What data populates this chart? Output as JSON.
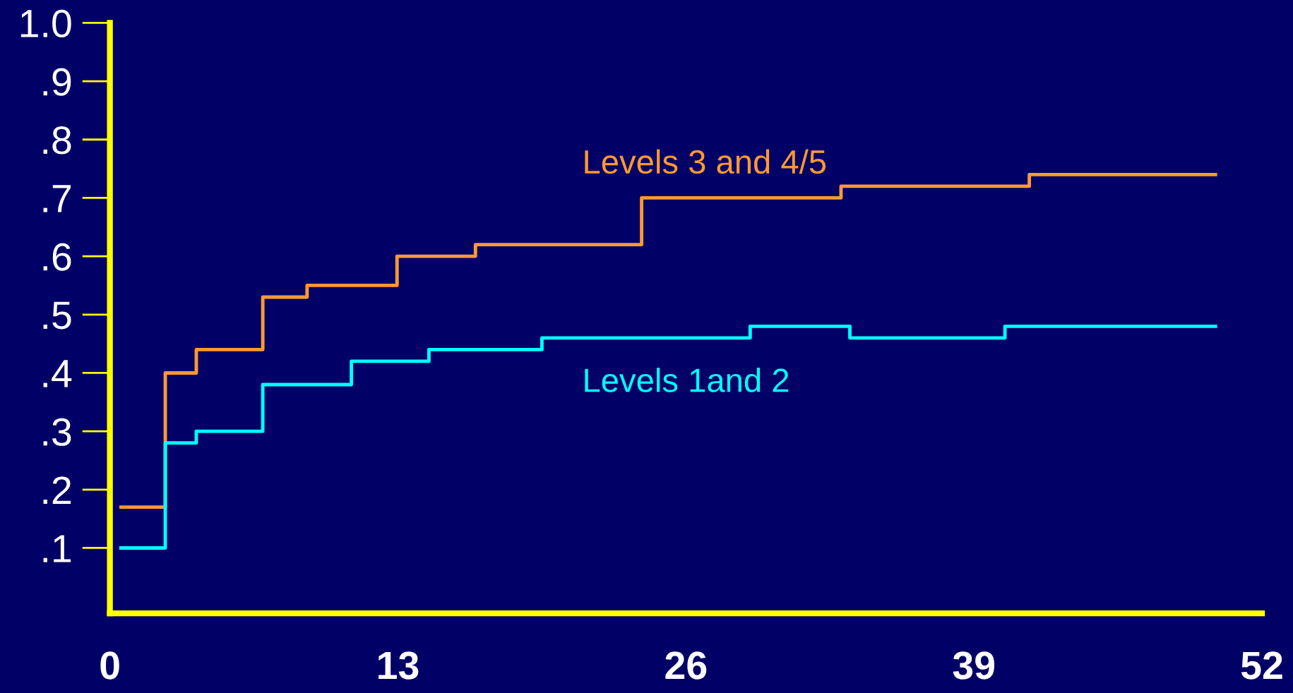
{
  "chart_data": {
    "type": "step",
    "xlim": [
      0,
      52
    ],
    "xticks": [
      0,
      13,
      26,
      39,
      52
    ],
    "ylim": [
      -0.012,
      1.0
    ],
    "yticks": [
      {
        "value": 0.1,
        "label": ".1"
      },
      {
        "value": 0.2,
        "label": ".2"
      },
      {
        "value": 0.3,
        "label": ".3"
      },
      {
        "value": 0.4,
        "label": ".4"
      },
      {
        "value": 0.5,
        "label": ".5"
      },
      {
        "value": 0.6,
        "label": ".6"
      },
      {
        "value": 0.7,
        "label": ".7"
      },
      {
        "value": 0.8,
        "label": ".8"
      },
      {
        "value": 0.9,
        "label": ".9"
      },
      {
        "value": 1.0,
        "label": "1.0"
      }
    ],
    "grid": false,
    "legend": false,
    "series": [
      {
        "name": "Levels 3 and 4/5",
        "color": "#ff9933",
        "x": [
          0.5,
          2.5,
          3.9,
          6.9,
          8.9,
          12.96,
          16.5,
          24.0,
          33.0,
          41.5,
          49.9
        ],
        "values": [
          0.17,
          0.4,
          0.44,
          0.53,
          0.55,
          0.6,
          0.62,
          0.7,
          0.72,
          0.74,
          0.74
        ]
      },
      {
        "name": "Levels 1and 2",
        "color": "#00ffff",
        "x": [
          0.5,
          2.5,
          3.9,
          6.9,
          10.9,
          14.4,
          19.5,
          28.9,
          33.4,
          40.4,
          49.9
        ],
        "values": [
          0.1,
          0.28,
          0.3,
          0.38,
          0.42,
          0.44,
          0.46,
          0.48,
          0.46,
          0.48,
          0.48
        ]
      }
    ]
  }
}
